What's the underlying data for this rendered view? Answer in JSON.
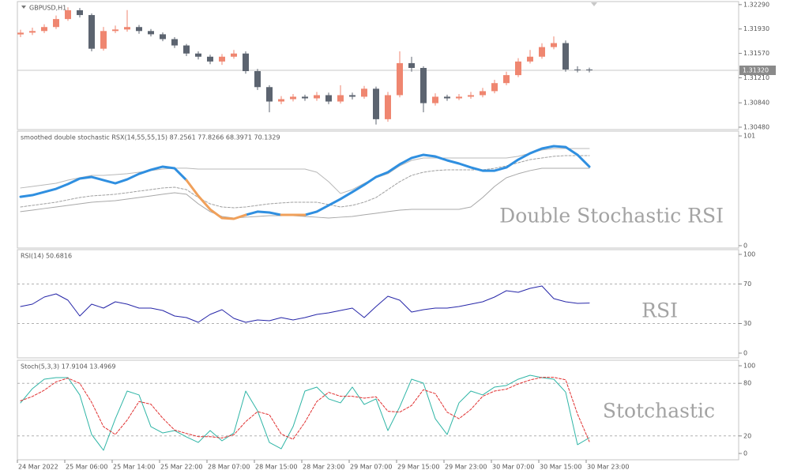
{
  "chart_data": [
    {
      "type": "candlestick",
      "title": "GBPUSD,H1",
      "open": [
        1.3185,
        1.31876,
        1.319,
        1.31959,
        1.32077,
        1.32207,
        1.32136,
        1.31639,
        1.319,
        1.31923,
        1.31959,
        1.319,
        1.31852,
        1.31781,
        1.31687,
        1.31568,
        1.31521,
        1.3145,
        1.31521,
        1.31568,
        1.31308,
        1.31072,
        1.30859,
        1.30894,
        1.3093,
        1.30906,
        1.30953,
        1.30859,
        1.30953,
        1.3093,
        1.31048,
        1.30598,
        1.30953,
        1.31426,
        1.31355,
        1.30835,
        1.3093,
        1.30906,
        1.3093,
        1.30953,
        1.31012,
        1.31131,
        1.31249,
        1.3145,
        1.31521,
        1.31663,
        1.31722,
        1.31332,
        1.31332
      ],
      "high": [
        1.3192,
        1.3195,
        1.32,
        1.3213,
        1.3225,
        1.3224,
        1.3216,
        1.3196,
        1.3198,
        1.3221,
        1.3199,
        1.3193,
        1.3188,
        1.3181,
        1.3171,
        1.316,
        1.3155,
        1.3156,
        1.3162,
        1.316,
        1.3134,
        1.311,
        1.3094,
        1.3097,
        1.3096,
        1.31,
        1.3099,
        1.311,
        1.3099,
        1.3109,
        1.3108,
        1.31,
        1.316,
        1.3152,
        1.3138,
        1.3098,
        1.3096,
        1.3097,
        1.31,
        1.3106,
        1.3118,
        1.313,
        1.315,
        1.3162,
        1.3172,
        1.3182,
        1.3176,
        1.3138,
        1.3136
      ],
      "low": [
        1.3181,
        1.3184,
        1.3187,
        1.3193,
        1.3205,
        1.321,
        1.316,
        1.3161,
        1.3187,
        1.3189,
        1.3186,
        1.3182,
        1.3175,
        1.3165,
        1.3153,
        1.3148,
        1.3141,
        1.314,
        1.3149,
        1.3127,
        1.3103,
        1.307,
        1.3082,
        1.3086,
        1.3087,
        1.3087,
        1.3082,
        1.3083,
        1.3089,
        1.309,
        1.3052,
        1.3056,
        1.3092,
        1.313,
        1.307,
        1.308,
        1.3087,
        1.3088,
        1.309,
        1.3092,
        1.3098,
        1.311,
        1.3122,
        1.3142,
        1.3149,
        1.3163,
        1.313,
        1.3129,
        1.3129
      ],
      "close": [
        1.31876,
        1.319,
        1.31959,
        1.32077,
        1.32207,
        1.32136,
        1.31639,
        1.319,
        1.31923,
        1.31959,
        1.319,
        1.31852,
        1.31781,
        1.31687,
        1.31568,
        1.31521,
        1.3145,
        1.31521,
        1.31568,
        1.31308,
        1.31072,
        1.30859,
        1.30894,
        1.3093,
        1.30906,
        1.30953,
        1.30859,
        1.30953,
        1.3093,
        1.31048,
        1.30598,
        1.30953,
        1.31426,
        1.31355,
        1.30835,
        1.3093,
        1.30906,
        1.3093,
        1.30953,
        1.31012,
        1.31131,
        1.31249,
        1.3145,
        1.31521,
        1.31663,
        1.31722,
        1.31332,
        1.31332,
        1.3132
      ],
      "up_color": "#ef8670",
      "down_color": "#5c6470",
      "last_price": {
        "value": 1.3132,
        "label": "1.31320"
      },
      "ylim": [
        1.30445,
        1.32335
      ],
      "yticks": [
        {
          "value": 1.3229,
          "label": "1.32290"
        },
        {
          "value": 1.3193,
          "label": "1.31930"
        },
        {
          "value": 1.3157,
          "label": "1.31570"
        },
        {
          "value": 1.3121,
          "label": "1.31210"
        },
        {
          "value": 1.3084,
          "label": "1.30840"
        },
        {
          "value": 1.3048,
          "label": "1.30480"
        }
      ]
    },
    {
      "type": "line",
      "title": "smoothed double stochastic RSX(14,55,55,15) 87.2561 77.8266 68.3971 70.1329",
      "annotation": "Double Stochastic RSI",
      "ylim": [
        -2.2,
        105.4
      ],
      "yticks": [
        101,
        0
      ],
      "series": [
        {
          "color": "#b8b8b8",
          "width": 1,
          "values": [
            53.1,
            54.5,
            56,
            57.4,
            60.3,
            62.5,
            64.7,
            64.7,
            65.4,
            66.2,
            67.6,
            69.1,
            70.5,
            71.3,
            71.3,
            70.5,
            70.5,
            70.5,
            70.5,
            70.5,
            70.5,
            70.5,
            70.5,
            70.5,
            70.5,
            67.6,
            58.9,
            48,
            51.6,
            57.4,
            62.5,
            66.2,
            73.4,
            78.5,
            80.7,
            80.7,
            80.7,
            80.7,
            80.7,
            80.7,
            80.7,
            80.7,
            82.2,
            85.1,
            88,
            89.4,
            89.4,
            89.4,
            89.4
          ]
        },
        {
          "color": "#a0a0a0",
          "width": 1,
          "dash": true,
          "values": [
            35.6,
            37.1,
            38.5,
            40,
            42.2,
            44.3,
            45.8,
            46.5,
            47.3,
            48.7,
            50.2,
            51.6,
            53.1,
            53.8,
            51.6,
            44.3,
            38.5,
            35.6,
            34.9,
            35.6,
            37.1,
            38.5,
            39.3,
            40,
            40,
            40,
            37.8,
            35.6,
            37.1,
            40,
            44.3,
            51.6,
            58.9,
            64.7,
            67.6,
            69.1,
            69.8,
            69.8,
            69.8,
            69.8,
            71.2,
            73.4,
            76.3,
            79.2,
            80.7,
            82.2,
            82.9,
            82.9,
            82.9
          ]
        },
        {
          "color": "#a8a8a8",
          "width": 1,
          "values": [
            31.3,
            32.7,
            34.2,
            35.6,
            37.1,
            38.5,
            40,
            40.7,
            41.4,
            42.9,
            44.3,
            45.8,
            47.3,
            48.7,
            47.3,
            38.5,
            31.3,
            26.9,
            25.4,
            26.2,
            26.9,
            27.6,
            27.6,
            27.6,
            26.9,
            26.2,
            25.4,
            26.2,
            26.9,
            28.4,
            29.8,
            31.3,
            32.7,
            33.4,
            33.4,
            33.4,
            33.4,
            33.4,
            35.6,
            44.3,
            54.5,
            62.5,
            66.2,
            69.1,
            71.2,
            71.2,
            71.2,
            71.2,
            71.2
          ]
        },
        {
          "color": "#2f8fe0",
          "width": 3,
          "values": [
            45,
            46.5,
            49.4,
            52.3,
            56.7,
            61.8,
            63.2,
            60.3,
            57.4,
            61,
            66.1,
            69.8,
            72.7,
            71.2,
            60.3,
            null,
            null,
            null,
            null,
            28.3,
            31.3,
            30.5,
            28.3,
            null,
            28.3,
            31.3,
            37.1,
            42.9,
            49.4,
            56,
            63.2,
            67.6,
            74.9,
            80.7,
            83.6,
            82.1,
            78.5,
            75.6,
            72,
            69,
            69,
            72,
            79.2,
            85,
            89.4,
            91.6,
            90.8,
            83.6,
            72.7
          ]
        },
        {
          "color": "#f0a05a",
          "width": 3,
          "values": [
            null,
            null,
            null,
            null,
            null,
            null,
            null,
            null,
            null,
            null,
            null,
            null,
            null,
            null,
            60.3,
            45.8,
            33.4,
            25.4,
            24.7,
            28.3,
            null,
            null,
            28.3,
            28.3,
            28.3,
            null,
            null,
            null,
            null,
            null,
            null,
            null,
            null,
            null,
            null,
            null,
            null,
            null,
            null,
            null,
            null,
            null,
            null,
            null,
            null,
            null,
            null,
            null,
            null
          ]
        }
      ]
    },
    {
      "type": "line",
      "title": "RSI(14) 50.6816",
      "annotation": "RSI",
      "ylim": [
        -4.8,
        104.8
      ],
      "yticks": [
        100,
        70,
        30,
        0
      ],
      "levels": [
        70,
        30
      ],
      "series": [
        {
          "color": "#2626a8",
          "width": 1,
          "values": [
            47.2,
            49.6,
            56.8,
            60,
            53.6,
            37.6,
            49.6,
            45.6,
            52,
            49.6,
            45.6,
            45.6,
            43.2,
            37.6,
            36,
            31.2,
            39.2,
            44,
            35.2,
            31.2,
            33.6,
            32.8,
            36,
            33.6,
            36,
            39.2,
            40.8,
            43.2,
            45.6,
            36,
            47.2,
            57.6,
            53.6,
            41.6,
            44,
            45.6,
            45.6,
            47.2,
            49.6,
            52,
            56.8,
            63.2,
            61.6,
            65.6,
            68,
            55.2,
            52,
            50.4,
            50.68
          ]
        }
      ]
    },
    {
      "type": "line",
      "title": "Stoch(5,3,3) 17.9104 13.4969",
      "annotation": "Stotchastic",
      "ylim": [
        -7.2,
        106.3
      ],
      "yticks": [
        100,
        80,
        20,
        0
      ],
      "levels": [
        80,
        20
      ],
      "series": [
        {
          "color": "#2fb5a6",
          "width": 1,
          "values": [
            57.7,
            73.9,
            84.7,
            86.5,
            86.5,
            66.7,
            21.6,
            3.6,
            39.6,
            71.2,
            66.7,
            30.6,
            23.4,
            26.1,
            18.9,
            12.6,
            26.1,
            14.4,
            23.4,
            71.2,
            48.6,
            12.6,
            5.4,
            30.6,
            71.2,
            75.7,
            62.2,
            57.7,
            75.7,
            55.9,
            62.2,
            26.1,
            53.2,
            84.7,
            80.2,
            39.6,
            21.6,
            57.7,
            71.2,
            66.7,
            75.7,
            77.5,
            84.7,
            89.2,
            86.5,
            84.7,
            70,
            10,
            17.91
          ]
        },
        {
          "color": "#e03030",
          "width": 1,
          "dash": true,
          "values": [
            60,
            65,
            72.1,
            81.7,
            85.9,
            79.9,
            58.3,
            30.6,
            21.6,
            38.1,
            59.2,
            56.2,
            40.2,
            26.7,
            22.8,
            19.2,
            19.2,
            17.7,
            21.3,
            36.3,
            47.7,
            44.1,
            22.2,
            16.2,
            35.7,
            59.2,
            69.7,
            65.2,
            65.2,
            63.1,
            64.6,
            48.1,
            47.2,
            54.7,
            72.7,
            68.2,
            47.1,
            39.6,
            50.2,
            65.2,
            71.2,
            73.3,
            79.3,
            83.8,
            86.8,
            86.8,
            84,
            45,
            13.5
          ]
        }
      ]
    }
  ],
  "time_axis": [
    "24 Mar 2022",
    "25 Mar 06:00",
    "25 Mar 14:00",
    "25 Mar 22:00",
    "28 Mar 07:00",
    "28 Mar 15:00",
    "28 Mar 23:00",
    "29 Mar 07:00",
    "29 Mar 15:00",
    "29 Mar 23:00",
    "30 Mar 07:00",
    "30 Mar 15:00",
    "30 Mar 23:00"
  ]
}
